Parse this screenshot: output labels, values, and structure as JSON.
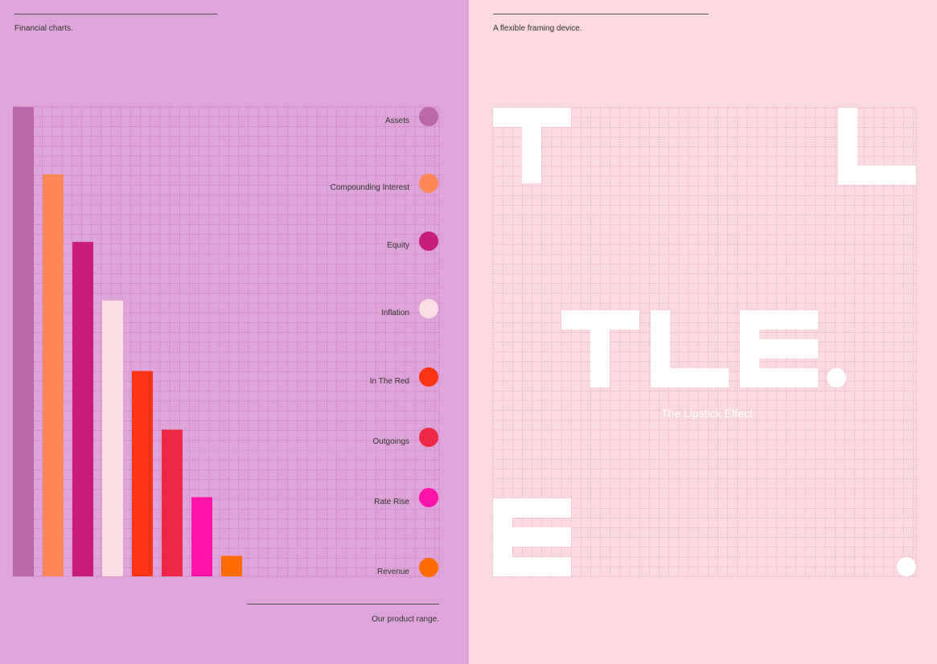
{
  "left_panel": {
    "heading": "Financial charts.",
    "footer": "Our product range.",
    "background": "#DEA5DA"
  },
  "chart_data": {
    "type": "bar",
    "title": "",
    "xlabel": "",
    "ylabel": "",
    "ylim": [
      0,
      8
    ],
    "grid": true,
    "legend": "right",
    "categories": [
      "Assets",
      "Compounding Interest",
      "Equity",
      "Inflation",
      "In The Red",
      "Outgoings",
      "Rate Rise",
      "Revenue"
    ],
    "values": [
      8,
      6.85,
      5.7,
      4.7,
      3.5,
      2.5,
      1.35,
      0.35
    ],
    "colors": [
      "#BB67AC",
      "#FF8656",
      "#C71C7B",
      "#FCDEE5",
      "#FF3316",
      "#EE2846",
      "#FF13A8",
      "#FF6B00"
    ]
  },
  "right_panel": {
    "heading": "A flexible framing device.",
    "background": "#FAD9E0",
    "logo_text": "TLE.",
    "tagline": "The Lipstick Effect",
    "corner_letters": [
      "T",
      "L",
      "E",
      "."
    ]
  }
}
